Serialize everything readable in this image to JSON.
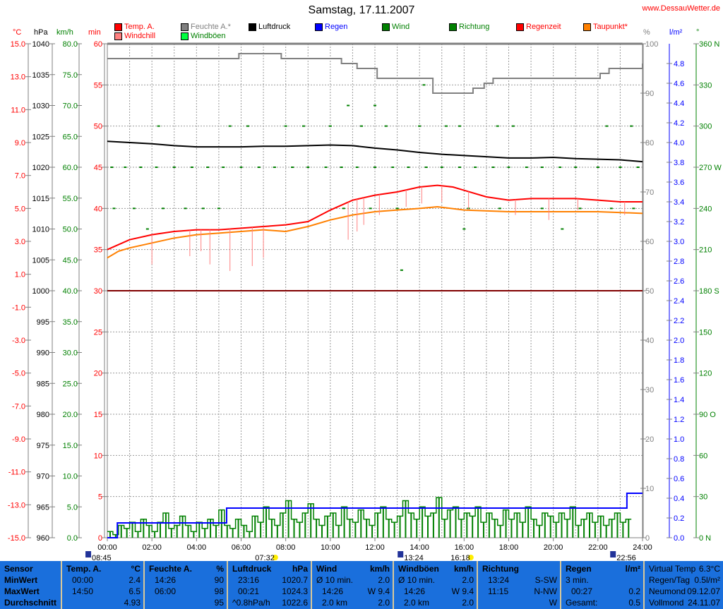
{
  "title": "Samstag, 17.11.2007",
  "site": "www.DessauWetter.de",
  "legend": [
    {
      "label": "Temp. A.",
      "color": "#ff0000",
      "text_color": "#ff0000"
    },
    {
      "label": "Windchill",
      "color": "#ff8080",
      "text_color": "#ff0000"
    },
    {
      "label": "Feuchte A.*",
      "color": "#808080",
      "text_color": "#808080"
    },
    {
      "label": "Windböen",
      "color": "#00ff40",
      "text_color": "#008000"
    },
    {
      "label": "Luftdruck",
      "color": "#000000",
      "text_color": "#000000"
    },
    {
      "label": "Regen",
      "color": "#0000ff",
      "text_color": "#0000ff"
    },
    {
      "label": "Wind",
      "color": "#008000",
      "text_color": "#008000"
    },
    {
      "label": "Richtung",
      "color": "#008000",
      "text_color": "#008000"
    },
    {
      "label": "Regenzeit",
      "color": "#ff0000",
      "text_color": "#ff0000"
    },
    {
      "label": "Taupunkt*",
      "color": "#ff8000",
      "text_color": "#ff0000"
    }
  ],
  "units": {
    "celsius": "°C",
    "hpa": "hPa",
    "kmh": "km/h",
    "min": "min",
    "percent": "%",
    "rain": "l/m²",
    "deg": "°"
  },
  "chart_data": {
    "type": "line",
    "x_range_hours": [
      0,
      24
    ],
    "grid": true,
    "x_ticks": [
      "00:00",
      "02:00",
      "04:00",
      "06:00",
      "08:00",
      "10:00",
      "12:00",
      "14:00",
      "16:00",
      "18:00",
      "20:00",
      "22:00",
      "24:00"
    ],
    "axes": {
      "celsius": {
        "range": [
          -15,
          15
        ],
        "ticks": [
          "15.0",
          "13.0",
          "11.0",
          "9.0",
          "7.0",
          "5.0",
          "3.0",
          "1.0",
          "-1.0",
          "-3.0",
          "-5.0",
          "-7.0",
          "-9.0",
          "-11.0",
          "-13.0",
          "-15.0"
        ],
        "color": "#ff0000"
      },
      "hpa": {
        "range": [
          960,
          1040
        ],
        "ticks": [
          "1040",
          "1035",
          "1030",
          "1025",
          "1020",
          "1015",
          "1010",
          "1005",
          "1000",
          "995",
          "990",
          "985",
          "980",
          "975",
          "970",
          "965",
          "960"
        ],
        "color": "#000000"
      },
      "kmh": {
        "range": [
          0,
          80
        ],
        "ticks": [
          "80.0",
          "75.0",
          "70.0",
          "65.0",
          "60.0",
          "55.0",
          "50.0",
          "45.0",
          "40.0",
          "35.0",
          "30.0",
          "25.0",
          "20.0",
          "15.0",
          "10.0",
          "5.0",
          "0.0"
        ],
        "color": "#008000"
      },
      "min": {
        "range": [
          0,
          60
        ],
        "ticks": [
          "60",
          "55",
          "50",
          "45",
          "40",
          "35",
          "30",
          "25",
          "20",
          "15",
          "10",
          "5",
          "0"
        ],
        "color": "#ff0000"
      },
      "percent": {
        "range": [
          0,
          100
        ],
        "ticks": [
          "100",
          "90",
          "80",
          "70",
          "60",
          "50",
          "40",
          "30",
          "20",
          "10",
          "0"
        ],
        "color": "#808080"
      },
      "rain": {
        "range": [
          0,
          5
        ],
        "ticks": [
          "4.8",
          "4.6",
          "4.4",
          "4.2",
          "4.0",
          "3.8",
          "3.6",
          "3.4",
          "3.2",
          "3.0",
          "2.8",
          "2.6",
          "2.4",
          "2.2",
          "2.0",
          "1.8",
          "1.6",
          "1.4",
          "1.2",
          "1.0",
          "0.8",
          "0.6",
          "0.4",
          "0.2",
          "0.0"
        ],
        "color": "#0000ff"
      },
      "deg": {
        "range": [
          0,
          360
        ],
        "ticks": [
          "360 N",
          "330",
          "300",
          "270 W",
          "240",
          "210",
          "180 S",
          "150",
          "120",
          "90 O",
          "60",
          "30",
          "0 N"
        ],
        "color": "#008000"
      }
    },
    "zero_line_celsius": 0,
    "series": [
      {
        "name": "Temp. A.",
        "axis": "celsius",
        "color": "#ff0000",
        "x": [
          0,
          0.5,
          1,
          2,
          3,
          4,
          5,
          6,
          7,
          8,
          9,
          10,
          10.5,
          11,
          12,
          13,
          14,
          14.8,
          15.5,
          16,
          17,
          18,
          19,
          20,
          21,
          22,
          23,
          24
        ],
        "y": [
          2.5,
          2.8,
          3.1,
          3.4,
          3.6,
          3.7,
          3.7,
          3.8,
          3.9,
          4.0,
          4.2,
          4.9,
          5.2,
          5.5,
          5.8,
          6.0,
          6.3,
          6.4,
          6.3,
          6.1,
          5.7,
          5.5,
          5.6,
          5.6,
          5.6,
          5.5,
          5.4,
          5.4
        ]
      },
      {
        "name": "Taupunkt*",
        "axis": "celsius",
        "color": "#ff8000",
        "x": [
          0,
          0.5,
          1,
          2,
          3,
          4,
          5,
          6,
          7,
          8,
          9,
          10,
          11,
          12,
          13,
          14,
          14.8,
          16,
          18,
          20,
          22,
          24
        ],
        "y": [
          2.0,
          2.4,
          2.6,
          2.9,
          3.2,
          3.4,
          3.5,
          3.6,
          3.7,
          3.6,
          3.9,
          4.3,
          4.6,
          4.8,
          4.9,
          5.0,
          5.1,
          4.9,
          4.8,
          4.8,
          4.8,
          4.7
        ]
      },
      {
        "name": "Luftdruck",
        "axis": "hpa",
        "color": "#000000",
        "x": [
          0,
          1,
          2,
          3,
          4,
          5,
          6,
          7,
          8,
          9,
          10,
          11,
          12,
          13,
          14,
          15,
          16,
          17,
          18,
          19,
          20,
          21,
          22,
          23,
          24
        ],
        "y": [
          1024.2,
          1024.0,
          1023.8,
          1023.5,
          1023.3,
          1023.3,
          1023.3,
          1023.4,
          1023.4,
          1023.5,
          1023.6,
          1023.5,
          1023.1,
          1022.8,
          1022.4,
          1022.1,
          1021.9,
          1021.7,
          1021.5,
          1021.5,
          1021.6,
          1021.4,
          1021.3,
          1021.2,
          1020.9
        ]
      },
      {
        "name": "Feuchte A.*",
        "axis": "percent",
        "color": "#808080",
        "step": true,
        "x": [
          0,
          5.9,
          7.8,
          10.5,
          11.2,
          12.1,
          14.6,
          16.4,
          16.9,
          17.3,
          22.1,
          22.5,
          23.4,
          24
        ],
        "y": [
          97,
          98,
          97,
          96,
          95,
          93,
          90,
          91,
          92,
          93,
          94,
          95,
          95,
          96
        ]
      },
      {
        "name": "Regen",
        "axis": "rain",
        "color": "#0000ff",
        "step": true,
        "x": [
          0,
          0.45,
          5.35,
          23.3,
          24
        ],
        "y": [
          0,
          0.15,
          0.3,
          0.45,
          0.45
        ]
      }
    ],
    "wind": {
      "axis": "kmh",
      "color": "#008000",
      "interval_hours": 0.25,
      "values": [
        1,
        0.5,
        2,
        1.5,
        2.5,
        1,
        3,
        2,
        1,
        2.5,
        4,
        1.5,
        2,
        3.5,
        2,
        1,
        2.5,
        1.5,
        3,
        2,
        4.5,
        2,
        1.5,
        3,
        2,
        1,
        3.5,
        2.5,
        5,
        3,
        2,
        4,
        6,
        3,
        2.5,
        4,
        5.5,
        3,
        2,
        3.5,
        4,
        2,
        5,
        3,
        2.5,
        4.5,
        3,
        2,
        4,
        5,
        3,
        2.5,
        3.5,
        6,
        4,
        3,
        5,
        3.5,
        4,
        6.5,
        3,
        4.5,
        5,
        3,
        4,
        3.5,
        5,
        2.5,
        4,
        3,
        2,
        4.5,
        3,
        4,
        2.5,
        5,
        3,
        2,
        4,
        3.5,
        2.5,
        4,
        3,
        5,
        2,
        3,
        4,
        2.5,
        3.5,
        2,
        3,
        4,
        2.5,
        3
      ]
    },
    "direction": {
      "axis": "deg",
      "color": "#008000",
      "points": [
        [
          0.2,
          270
        ],
        [
          0.8,
          270
        ],
        [
          1.5,
          270
        ],
        [
          2.2,
          270
        ],
        [
          3,
          270
        ],
        [
          3.8,
          270
        ],
        [
          4.5,
          270
        ],
        [
          5.2,
          270
        ],
        [
          6,
          270
        ],
        [
          6.8,
          270
        ],
        [
          7.5,
          270
        ],
        [
          8.3,
          270
        ],
        [
          9,
          270
        ],
        [
          9.8,
          270
        ],
        [
          10.5,
          270
        ],
        [
          11.2,
          270
        ],
        [
          12,
          270
        ],
        [
          12.8,
          270
        ],
        [
          13.5,
          270
        ],
        [
          14.3,
          270
        ],
        [
          15,
          270
        ],
        [
          15.8,
          270
        ],
        [
          16.5,
          270
        ],
        [
          17.3,
          270
        ],
        [
          18,
          270
        ],
        [
          18.8,
          270
        ],
        [
          19.5,
          270
        ],
        [
          20.3,
          270
        ],
        [
          21,
          270
        ],
        [
          22,
          270
        ],
        [
          23,
          270
        ],
        [
          23.8,
          270
        ],
        [
          2.3,
          300
        ],
        [
          5.5,
          300
        ],
        [
          6.3,
          300
        ],
        [
          8,
          300
        ],
        [
          8.8,
          300
        ],
        [
          10,
          300
        ],
        [
          11.4,
          300
        ],
        [
          12.5,
          300
        ],
        [
          14,
          300
        ],
        [
          15.2,
          300
        ],
        [
          15.8,
          300
        ],
        [
          17.5,
          300
        ],
        [
          18.2,
          300
        ],
        [
          22.4,
          300
        ],
        [
          23.5,
          300
        ],
        [
          0.3,
          240
        ],
        [
          1.2,
          240
        ],
        [
          2.5,
          240
        ],
        [
          3.5,
          240
        ],
        [
          4.3,
          240
        ],
        [
          5,
          240
        ],
        [
          10.6,
          240
        ],
        [
          11.8,
          240
        ],
        [
          13,
          240
        ],
        [
          16.2,
          240
        ],
        [
          17.6,
          240
        ],
        [
          19.5,
          240
        ],
        [
          21.2,
          240
        ],
        [
          22.6,
          240
        ],
        [
          23.6,
          240
        ],
        [
          1.8,
          225
        ],
        [
          16,
          225
        ],
        [
          20.4,
          225
        ],
        [
          13.2,
          195
        ],
        [
          12,
          315
        ],
        [
          14.2,
          330
        ],
        [
          10.8,
          315
        ]
      ]
    },
    "windchill_dips": [
      [
        2,
        1.6
      ],
      [
        3.7,
        2.1
      ],
      [
        4.2,
        2.4
      ],
      [
        4.6,
        1.6
      ],
      [
        5.5,
        1.2
      ],
      [
        6.5,
        1.5
      ],
      [
        7,
        2.0
      ],
      [
        10.8,
        3.1
      ],
      [
        11.2,
        3.6
      ],
      [
        11.5,
        4.0
      ],
      [
        12.2,
        4.6
      ],
      [
        13.4,
        5.1
      ],
      [
        14.1,
        5.3
      ],
      [
        15,
        5.4
      ],
      [
        16.2,
        4.9
      ],
      [
        18.3,
        4.6
      ],
      [
        19.8,
        4.3
      ],
      [
        21.1,
        4.9
      ],
      [
        23.2,
        4.6
      ]
    ]
  },
  "sun_moon": [
    {
      "time": "08:45",
      "icon": "moon-set-icon",
      "hour": -0.6
    },
    {
      "time": "07:32",
      "icon": "sunrise-icon",
      "hour": 7.53
    },
    {
      "time": "13:24",
      "icon": "moonrise-icon",
      "hour": 13.4
    },
    {
      "time": "16:18",
      "icon": "sunset-icon",
      "hour": 16.3
    },
    {
      "time": "22:56",
      "icon": "moonset-icon",
      "hour": 22.93
    }
  ],
  "table": {
    "sensor": [
      "Sensor",
      "MinWert",
      "MaxWert",
      "Durchschnitt"
    ],
    "temp": {
      "head": "Temp. A.",
      "unit": "°C",
      "rows": [
        [
          "00:00",
          "2.4"
        ],
        [
          "14:50",
          "6.5"
        ],
        [
          "",
          "4.93"
        ]
      ]
    },
    "hum": {
      "head": "Feuchte A.",
      "unit": "%",
      "rows": [
        [
          "14:26",
          "90"
        ],
        [
          "06:00",
          "98"
        ],
        [
          "",
          "95"
        ]
      ]
    },
    "press": {
      "head": "Luftdruck",
      "unit": "hPa",
      "rows": [
        [
          "23:16",
          "1020.7"
        ],
        [
          "00:21",
          "1024.3"
        ],
        [
          "^0.8hPa/h",
          "1022.6"
        ]
      ]
    },
    "wind": {
      "head": "Wind",
      "unit": "km/h",
      "rows": [
        [
          "Ø 10 min.",
          "2.0"
        ],
        [
          "14:26",
          "W 9.4"
        ],
        [
          "2.0 km",
          "2.0"
        ]
      ]
    },
    "gust": {
      "head": "Windböen",
      "unit": "km/h",
      "rows": [
        [
          "Ø 10 min.",
          "2.0"
        ],
        [
          "14:26",
          "W 9.4"
        ],
        [
          "2.0 km",
          "2.0"
        ]
      ]
    },
    "dir": {
      "head": "Richtung",
      "unit": "",
      "rows": [
        [
          "13:24",
          "S-SW"
        ],
        [
          "11:15",
          "N-NW"
        ],
        [
          "",
          "W"
        ]
      ]
    },
    "rain": {
      "head": "Regen",
      "unit": "l/m²",
      "rows": [
        [
          "3 min.",
          ""
        ],
        [
          "00:27",
          "0.2"
        ],
        [
          "Gesamt:",
          "0.5"
        ]
      ]
    },
    "extra": [
      [
        "Virtual Temp",
        "6.3°C"
      ],
      [
        "Regen/Tag",
        "0.5l/m²"
      ],
      [
        "Neumond",
        "09.12.07"
      ],
      [
        "Vollmond",
        "24.11.07"
      ]
    ]
  }
}
